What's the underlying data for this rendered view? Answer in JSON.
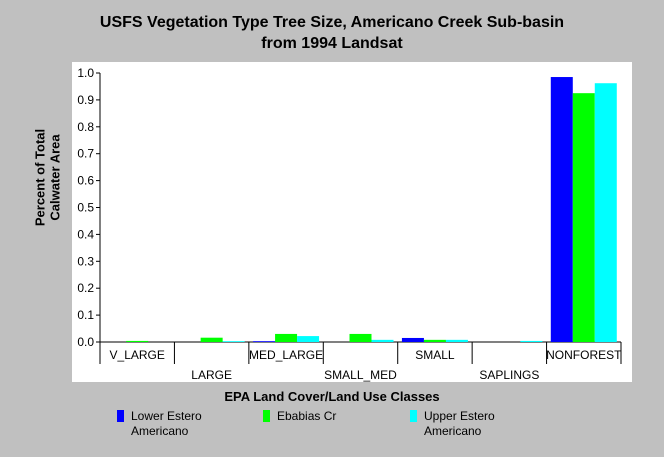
{
  "chart_data": {
    "type": "bar",
    "title": "USFS Vegetation Type Tree Size, Americano Creek Sub-basin",
    "subtitle": "from 1994 Landsat",
    "ylabel_line1": "Percent of Total",
    "ylabel_line2": "Calwater Area",
    "xlabel": "EPA Land Cover/Land Use Classes",
    "ylim": [
      0,
      1.0
    ],
    "yticks": [
      "0.0",
      "0.1",
      "0.2",
      "0.3",
      "0.4",
      "0.5",
      "0.6",
      "0.7",
      "0.8",
      "0.9",
      "1.0"
    ],
    "categories": [
      "V_LARGE",
      "LARGE",
      "MED_LARGE",
      "SMALL_MED",
      "SMALL",
      "SAPLINGS",
      "NONFOREST"
    ],
    "series": [
      {
        "name": "Lower Estero Americano",
        "label_line1": "Lower Estero",
        "label_line2": "Americano",
        "color": "#0000ff",
        "values": [
          0.0,
          0.0,
          0.003,
          0.0,
          0.015,
          0.0,
          0.985
        ]
      },
      {
        "name": "Ebabias Cr",
        "label_line1": "Ebabias Cr",
        "label_line2": "",
        "color": "#00ff00",
        "values": [
          0.004,
          0.016,
          0.03,
          0.03,
          0.008,
          0.0,
          0.925
        ]
      },
      {
        "name": "Upper Estero Americano",
        "label_line1": "Upper Estero",
        "label_line2": "Americano",
        "color": "#00ffff",
        "values": [
          0.0,
          0.003,
          0.022,
          0.008,
          0.008,
          0.004,
          0.962
        ]
      }
    ],
    "grid": false,
    "legend_position": "bottom"
  }
}
